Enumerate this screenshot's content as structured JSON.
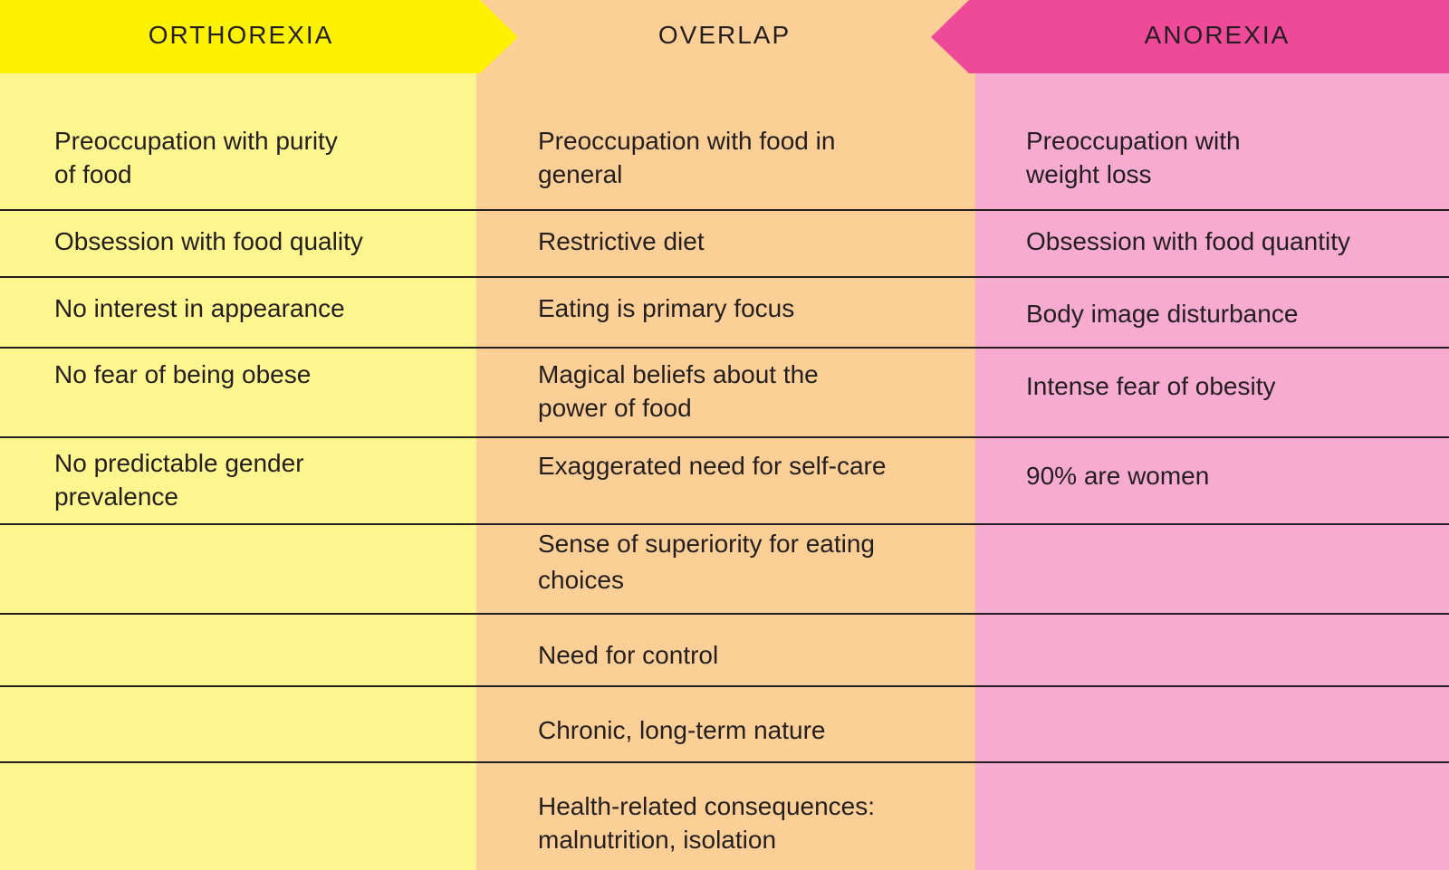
{
  "headers": {
    "left": "ORTHOREXIA",
    "middle": "OVERLAP",
    "right": "ANOREXIA"
  },
  "colors": {
    "orthorexia_banner": "#fff200",
    "orthorexia_column": "#fff68f",
    "overlap_column": "#fccf96",
    "anorexia_banner": "#ef4a9a",
    "anorexia_column": "#f7abd0"
  },
  "rows": [
    {
      "orthorexia": "Preoccupation with purity\nof food",
      "overlap": "Preoccupation with food in\ngeneral",
      "anorexia": "Preoccupation with\nweight loss"
    },
    {
      "orthorexia": "Obsession with food quality",
      "overlap": "Restrictive diet",
      "anorexia": "Obsession with food quantity"
    },
    {
      "orthorexia": "No interest in appearance",
      "overlap": "Eating is primary focus",
      "anorexia": "Body image disturbance"
    },
    {
      "orthorexia": "No fear of being obese",
      "overlap": "Magical beliefs about the\npower of food",
      "anorexia": "Intense fear of obesity"
    },
    {
      "orthorexia": "No predictable gender\nprevalence",
      "overlap": "Exaggerated need for self-care",
      "anorexia": "90% are women"
    },
    {
      "orthorexia": "",
      "overlap": "Sense of superiority for eating\nchoices",
      "anorexia": ""
    },
    {
      "orthorexia": "",
      "overlap": "Need for control",
      "anorexia": ""
    },
    {
      "orthorexia": "",
      "overlap": "Chronic, long-term nature",
      "anorexia": ""
    },
    {
      "orthorexia": "",
      "overlap": "Health-related consequences:\nmalnutrition, isolation",
      "anorexia": ""
    }
  ]
}
